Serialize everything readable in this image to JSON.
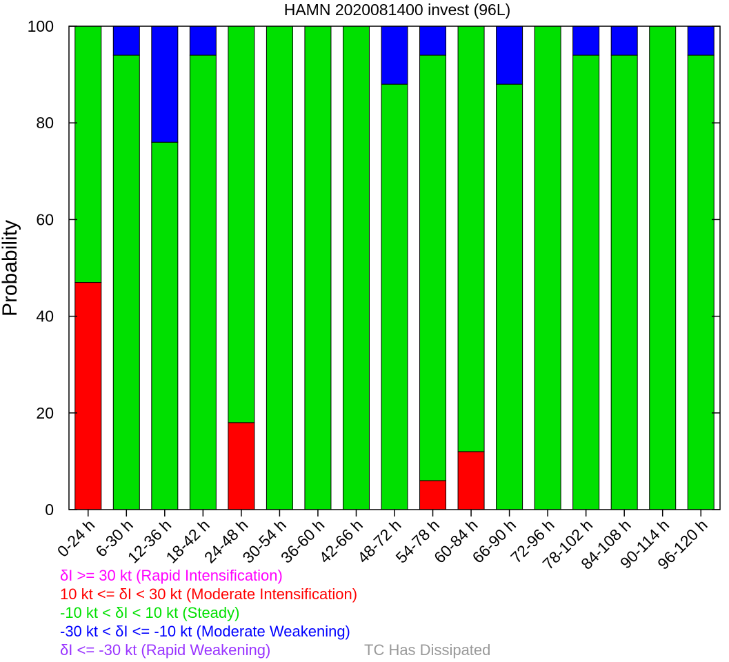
{
  "chart_data": {
    "type": "bar",
    "stacked": true,
    "title": "HAMN 2020081400 invest (96L)",
    "ylabel": "Probability",
    "xlabel": "",
    "ylim": [
      0,
      100
    ],
    "yticks": [
      0,
      20,
      40,
      60,
      80,
      100
    ],
    "grid": false,
    "categories": [
      "0-24 h",
      "6-30 h",
      "12-36 h",
      "18-42 h",
      "24-48 h",
      "30-54 h",
      "36-60 h",
      "42-66 h",
      "48-72 h",
      "54-78 h",
      "60-84 h",
      "66-90 h",
      "72-96 h",
      "78-102 h",
      "84-108 h",
      "90-114 h",
      "96-120 h"
    ],
    "series": [
      {
        "key": "rapid_intensification",
        "color": "#ff00ff",
        "values": [
          0,
          0,
          0,
          0,
          0,
          0,
          0,
          0,
          0,
          0,
          0,
          0,
          0,
          0,
          0,
          0,
          0
        ]
      },
      {
        "key": "moderate_intensification",
        "color": "#ff0000",
        "values": [
          47,
          0,
          0,
          0,
          18,
          0,
          0,
          0,
          0,
          6,
          12,
          0,
          0,
          0,
          0,
          0,
          0
        ]
      },
      {
        "key": "steady",
        "color": "#00e000",
        "values": [
          53,
          94,
          76,
          94,
          82,
          100,
          100,
          100,
          88,
          88,
          88,
          88,
          100,
          94,
          94,
          100,
          94
        ]
      },
      {
        "key": "moderate_weakening",
        "color": "#0000ff",
        "values": [
          0,
          6,
          24,
          6,
          0,
          0,
          0,
          0,
          12,
          6,
          0,
          12,
          0,
          6,
          6,
          0,
          6
        ]
      },
      {
        "key": "rapid_weakening",
        "color": "#9933ff",
        "values": [
          0,
          0,
          0,
          0,
          0,
          0,
          0,
          0,
          0,
          0,
          0,
          0,
          0,
          0,
          0,
          0,
          0
        ]
      }
    ]
  },
  "legend": {
    "items": [
      {
        "label": "δI >= 30 kt (Rapid Intensification)",
        "color": "#ff00ff"
      },
      {
        "label": "10 kt <= δI < 30 kt (Moderate Intensification)",
        "color": "#ff0000"
      },
      {
        "label": "-10 kt < δI < 10 kt (Steady)",
        "color": "#00e000"
      },
      {
        "label": "-30 kt < δI <= -10 kt (Moderate Weakening)",
        "color": "#0000ff"
      },
      {
        "label": "δI <= -30 kt (Rapid Weakening)",
        "color": "#9933ff"
      }
    ],
    "dissipated": {
      "label": "TC Has Dissipated",
      "color": "#999999"
    }
  }
}
